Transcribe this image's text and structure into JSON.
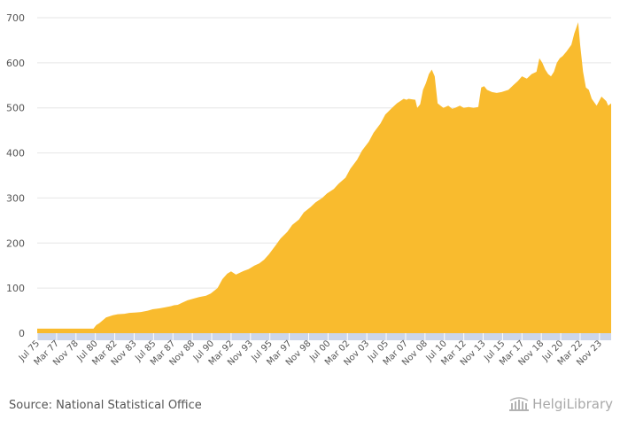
{
  "source": "Source: National Statistical Office",
  "brand": "HelgiLibrary",
  "colors": {
    "area": "#f9bb2e",
    "axis_band": "#ccd6eb",
    "grid": "#e6e6e6",
    "text": "#555555"
  },
  "chart_data": {
    "type": "area",
    "title": "",
    "xlabel": "",
    "ylabel": "",
    "ylim": [
      0,
      700
    ],
    "y_ticks": [
      0,
      100,
      200,
      300,
      400,
      500,
      600,
      700
    ],
    "x_tick_labels": [
      "Jul 75",
      "Mar 77",
      "Nov 78",
      "Jul 80",
      "Mar 82",
      "Nov 83",
      "Jul 85",
      "Mar 87",
      "Nov 88",
      "Jul 90",
      "Mar 92",
      "Nov 93",
      "Jul 95",
      "Mar 97",
      "Nov 98",
      "Jul 00",
      "Mar 02",
      "Nov 03",
      "Jul 05",
      "Mar 07",
      "Nov 08",
      "Jul 10",
      "Mar 12",
      "Nov 13",
      "Jul 15",
      "Mar 17",
      "Nov 18",
      "Jul 20",
      "Mar 22",
      "Nov 23"
    ],
    "grid": true,
    "legend": "none",
    "series": [
      {
        "x": [
          "1975-07",
          "1976-06",
          "1978-01",
          "1979-06",
          "1980-05",
          "1980-08",
          "1980-11",
          "1981-05",
          "1981-06",
          "1982-01",
          "1982-06",
          "1983-01",
          "1983-06",
          "1984-01",
          "1984-06",
          "1985-01",
          "1985-06",
          "1986-01",
          "1986-06",
          "1987-01",
          "1987-04",
          "1987-08",
          "1988-01",
          "1988-06",
          "1989-01",
          "1989-06",
          "1990-01",
          "1990-06",
          "1991-01",
          "1991-06",
          "1991-11",
          "1992-03",
          "1992-08",
          "1993-01",
          "1993-04",
          "1993-09",
          "1994-03",
          "1994-08",
          "1995-01",
          "1995-06",
          "1996-01",
          "1996-06",
          "1997-01",
          "1997-06",
          "1998-01",
          "1998-06",
          "1999-01",
          "1999-06",
          "2000-01",
          "2000-06",
          "2001-01",
          "2001-06",
          "2002-01",
          "2002-06",
          "2003-01",
          "2003-06",
          "2004-01",
          "2004-06",
          "2005-01",
          "2005-06",
          "2006-01",
          "2006-06",
          "2007-01",
          "2007-04",
          "2007-06",
          "2008-01",
          "2008-03",
          "2008-06",
          "2008-09",
          "2008-12",
          "2009-03",
          "2009-06",
          "2009-09",
          "2009-12",
          "2010-03",
          "2010-06",
          "2010-11",
          "2011-03",
          "2011-06",
          "2011-11",
          "2012-03",
          "2012-08",
          "2013-01",
          "2013-06",
          "2013-09",
          "2013-12",
          "2014-03",
          "2014-08",
          "2015-01",
          "2015-06",
          "2016-01",
          "2016-06",
          "2016-11",
          "2017-03",
          "2017-08",
          "2018-01",
          "2018-06",
          "2018-09",
          "2018-12",
          "2019-03",
          "2019-06",
          "2019-09",
          "2019-12",
          "2020-03",
          "2020-06",
          "2020-09",
          "2021-01",
          "2021-06",
          "2021-09",
          "2022-01",
          "2022-03",
          "2022-06",
          "2022-09",
          "2022-12",
          "2023-03",
          "2023-08",
          "2024-01",
          "2024-06",
          "2024-08",
          "2024-11"
        ],
        "values": [
          10,
          10,
          10,
          10,
          10,
          18,
          22,
          33,
          35,
          40,
          42,
          43,
          45,
          46,
          47,
          50,
          53,
          55,
          57,
          60,
          62,
          63,
          68,
          73,
          77,
          80,
          83,
          88,
          100,
          120,
          132,
          137,
          130,
          135,
          138,
          142,
          150,
          155,
          163,
          175,
          195,
          210,
          225,
          240,
          252,
          268,
          280,
          290,
          300,
          310,
          320,
          332,
          345,
          365,
          385,
          405,
          425,
          445,
          465,
          485,
          500,
          510,
          520,
          518,
          520,
          518,
          500,
          508,
          540,
          555,
          575,
          585,
          570,
          510,
          505,
          500,
          505,
          498,
          500,
          505,
          500,
          502,
          500,
          502,
          545,
          548,
          540,
          535,
          533,
          535,
          540,
          550,
          560,
          570,
          565,
          575,
          580,
          610,
          600,
          585,
          575,
          570,
          580,
          600,
          610,
          615,
          625,
          640,
          665,
          690,
          640,
          580,
          545,
          540,
          520,
          505,
          525,
          515,
          505,
          510
        ]
      }
    ]
  }
}
